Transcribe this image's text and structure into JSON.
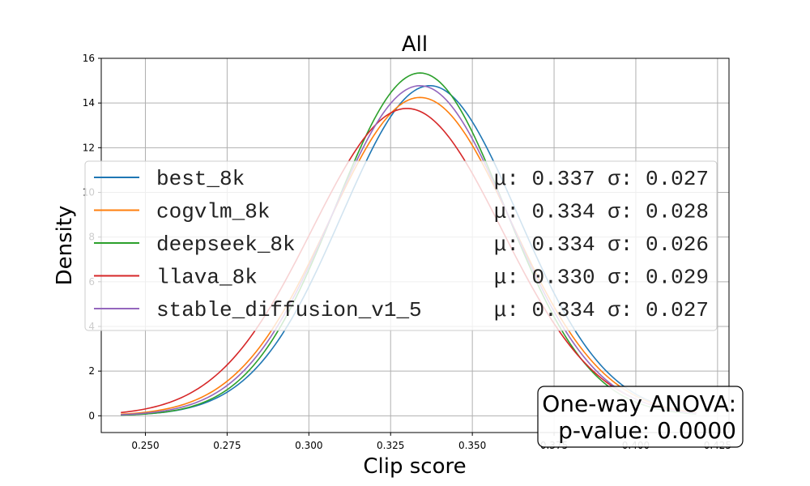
{
  "chart_data": {
    "type": "line",
    "title": "All",
    "xlabel": "Clip score",
    "ylabel": "Density",
    "xlim": [
      0.2365,
      0.4285
    ],
    "ylim": [
      -0.75,
      16
    ],
    "xticks": [
      0.25,
      0.275,
      0.3,
      0.325,
      0.35,
      0.375,
      0.4,
      0.425
    ],
    "xtick_labels": [
      "0.250",
      "0.275",
      "0.300",
      "0.325",
      "0.350",
      "0.375",
      "0.400",
      "0.425"
    ],
    "yticks": [
      0,
      2,
      4,
      6,
      8,
      10,
      12,
      14,
      16
    ],
    "ytick_labels": [
      "0",
      "2",
      "4",
      "6",
      "8",
      "10",
      "12",
      "14",
      "16"
    ],
    "grid": true,
    "legend_position": "center-left",
    "series": [
      {
        "name": "best_8k",
        "mu": 0.337,
        "sigma": 0.027,
        "stats": "μ: 0.337 σ: 0.027",
        "color": "#1f77b4",
        "x_range": [
          0.2425,
          0.4045
        ]
      },
      {
        "name": "cogvlm_8k",
        "mu": 0.334,
        "sigma": 0.028,
        "stats": "μ: 0.334 σ: 0.028",
        "color": "#ff7f0e",
        "x_range": [
          0.2425,
          0.4185
        ]
      },
      {
        "name": "deepseek_8k",
        "mu": 0.334,
        "sigma": 0.026,
        "stats": "μ: 0.334 σ: 0.026",
        "color": "#2ca02c",
        "x_range": [
          0.2425,
          0.4185
        ]
      },
      {
        "name": "llava_8k",
        "mu": 0.33,
        "sigma": 0.029,
        "stats": "μ: 0.330 σ: 0.029",
        "color": "#d62728",
        "x_range": [
          0.2425,
          0.4185
        ]
      },
      {
        "name": "stable_diffusion_v1_5",
        "mu": 0.334,
        "sigma": 0.027,
        "stats": "μ: 0.334 σ: 0.027",
        "color": "#9467bd",
        "x_range": [
          0.2425,
          0.4185
        ]
      }
    ],
    "annotation": {
      "line1": "One-way ANOVA:",
      "line2": "p-value: 0.0000"
    }
  }
}
